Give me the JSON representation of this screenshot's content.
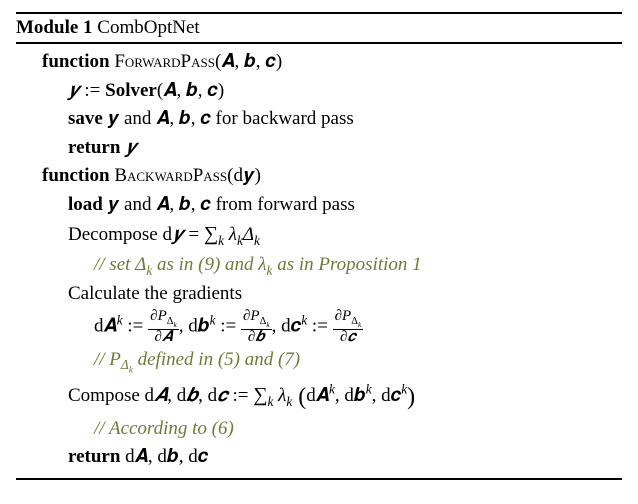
{
  "module": {
    "label": "Module 1",
    "name": "CombOptNet"
  },
  "forward": {
    "keyword": "function",
    "name": "ForwardPass",
    "args": "(𝑨, 𝒃, 𝒄)",
    "line1_lhs": "𝒚",
    "line1_assign": " := ",
    "line1_solver": "Solver",
    "line1_solver_args": "(𝑨, 𝒃, 𝒄)",
    "line2_save": "save",
    "line2_body": " 𝒚 and 𝑨, 𝒃, 𝒄 for backward pass",
    "line3_return": "return",
    "line3_val": " 𝒚"
  },
  "backward": {
    "keyword": "function",
    "name": "BackwardPass",
    "args": "(d𝒚)",
    "load_kw": "load",
    "load_body": " 𝒚 and 𝑨, 𝒃, 𝒄 from forward pass",
    "decomp_pre": "Decompose d",
    "decomp_y": "𝒚",
    "decomp_eq": " = ",
    "decomp_sum": "∑",
    "decomp_sub": "k",
    "decomp_rhs": " λ",
    "decomp_rhs2": "Δ",
    "comment1": "// set Δ",
    "comment1_sub": "k",
    "comment1_mid": " as in (9) and λ",
    "comment1_sub2": "k",
    "comment1_end": " as in Proposition 1",
    "calc": "Calculate the gradients",
    "dA_lhs": "d𝑨",
    "dA_sup": "k",
    "assign": " := ",
    "frac_num_pre": "∂P",
    "frac_num_delta": "Δ",
    "frac_num_sub": "k",
    "frac_denom_A": "∂𝑨",
    "sep": ", ",
    "db_lhs": "d𝒃",
    "frac_denom_b": "∂𝒃",
    "dc_lhs": "d𝒄",
    "frac_denom_c": "∂𝒄",
    "comment2_pre": "// P",
    "comment2_delta": "Δ",
    "comment2_sub": "k",
    "comment2_end": " defined in (5) and (7)",
    "compose_pre": "Compose d",
    "compose_A": "𝑨",
    "compose_sep": ", d",
    "compose_b": "𝒃",
    "compose_c": "𝒄",
    "compose_assign": " := ",
    "compose_sum": "∑",
    "compose_sub": "k",
    "compose_lambda": " λ",
    "compose_open": " (",
    "compose_dA": "d𝑨",
    "compose_k": "k",
    "compose_comma": ", ",
    "compose_db": "d𝒃",
    "compose_dc": "d𝒄",
    "compose_close": ")",
    "comment3": "// According to (6)",
    "return_kw": "return",
    "return_body": " d𝑨, d𝒃, d𝒄"
  }
}
